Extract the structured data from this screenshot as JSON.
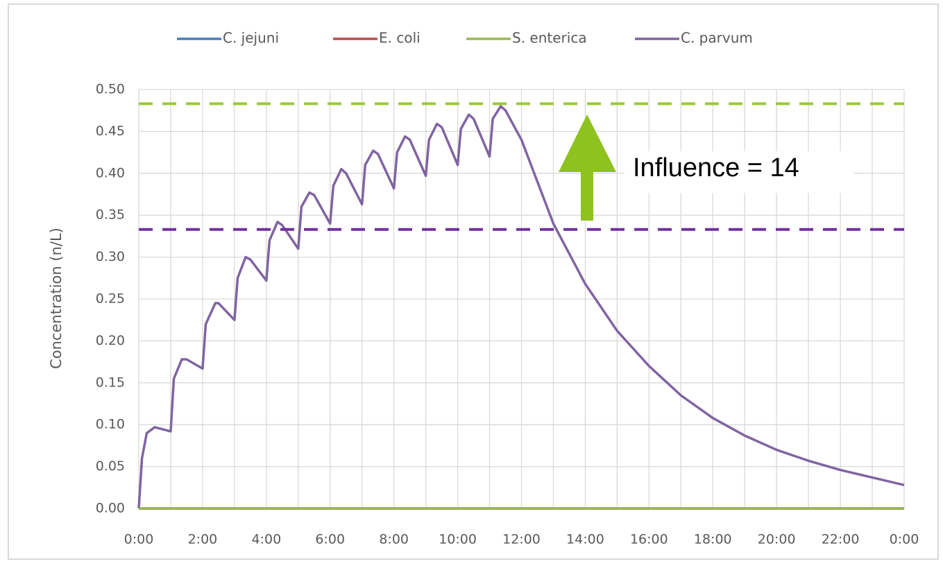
{
  "chart_data": {
    "type": "line",
    "y_label": "Concentration (n/L)",
    "annotation": "Influence = 14",
    "legend": "top",
    "grid": true,
    "xlim": [
      0,
      24
    ],
    "xticks": [
      {
        "value": 0,
        "label": "0:00"
      },
      {
        "value": 2,
        "label": "2:00"
      },
      {
        "value": 4,
        "label": "4:00"
      },
      {
        "value": 6,
        "label": "6:00"
      },
      {
        "value": 8,
        "label": "8:00"
      },
      {
        "value": 10,
        "label": "10:00"
      },
      {
        "value": 12,
        "label": "12:00"
      },
      {
        "value": 14,
        "label": "14:00"
      },
      {
        "value": 16,
        "label": "16:00"
      },
      {
        "value": 18,
        "label": "18:00"
      },
      {
        "value": 20,
        "label": "20:00"
      },
      {
        "value": 22,
        "label": "22:00"
      },
      {
        "value": 24,
        "label": "0:00"
      }
    ],
    "xminor_ticks": [
      1,
      3,
      5,
      7,
      9,
      11,
      13,
      15,
      17,
      19,
      21,
      23
    ],
    "ylim": [
      0,
      0.5
    ],
    "yticks": [
      {
        "value": 0,
        "label": "0.00"
      },
      {
        "value": 0.05,
        "label": "0.05"
      },
      {
        "value": 0.1,
        "label": "0.10"
      },
      {
        "value": 0.15,
        "label": "0.15"
      },
      {
        "value": 0.2,
        "label": "0.20"
      },
      {
        "value": 0.25,
        "label": "0.25"
      },
      {
        "value": 0.3,
        "label": "0.30"
      },
      {
        "value": 0.35,
        "label": "0.35"
      },
      {
        "value": 0.4,
        "label": "0.40"
      },
      {
        "value": 0.45,
        "label": "0.45"
      },
      {
        "value": 0.5,
        "label": "0.50"
      }
    ],
    "reference_lines": [
      {
        "value": 0.483,
        "color": "#9bc83a"
      },
      {
        "value": 0.333,
        "color": "#7030a0"
      }
    ],
    "x": [
      0,
      0.1,
      0.25,
      0.5,
      1,
      1.1,
      1.35,
      1.5,
      2,
      2.1,
      2.4,
      2.5,
      3,
      3.1,
      3.35,
      3.5,
      4,
      4.1,
      4.35,
      4.5,
      5,
      5.1,
      5.35,
      5.5,
      6,
      6.1,
      6.35,
      6.5,
      7,
      7.1,
      7.35,
      7.5,
      8,
      8.1,
      8.35,
      8.5,
      9,
      9.1,
      9.35,
      9.5,
      10,
      10.1,
      10.35,
      10.5,
      11,
      11.1,
      11.35,
      11.5,
      12,
      13,
      14,
      15,
      16,
      17,
      18,
      19,
      20,
      21,
      22,
      23,
      24
    ],
    "series": [
      {
        "name": "C. jejuni",
        "color": "#4a7ebb",
        "values": [
          0,
          0,
          0,
          0,
          0,
          0,
          0,
          0,
          0,
          0,
          0,
          0,
          0,
          0,
          0,
          0,
          0,
          0,
          0,
          0,
          0,
          0,
          0,
          0,
          0,
          0,
          0,
          0,
          0,
          0,
          0,
          0,
          0,
          0,
          0,
          0,
          0,
          0,
          0,
          0,
          0,
          0,
          0,
          0,
          0,
          0,
          0,
          0,
          0,
          0,
          0,
          0,
          0,
          0,
          0,
          0,
          0,
          0,
          0,
          0,
          0
        ]
      },
      {
        "name": "E. coli",
        "color": "#be4b48",
        "values": [
          0,
          0,
          0,
          0,
          0,
          0,
          0,
          0,
          0,
          0,
          0,
          0,
          0,
          0,
          0,
          0,
          0,
          0,
          0,
          0,
          0,
          0,
          0,
          0,
          0,
          0,
          0,
          0,
          0,
          0,
          0,
          0,
          0,
          0,
          0,
          0,
          0,
          0,
          0,
          0,
          0,
          0,
          0,
          0,
          0,
          0,
          0,
          0,
          0,
          0,
          0,
          0,
          0,
          0,
          0,
          0,
          0,
          0,
          0,
          0,
          0
        ]
      },
      {
        "name": "S. enterica",
        "color": "#98b954",
        "values": [
          0,
          0,
          0,
          0,
          0,
          0,
          0,
          0,
          0,
          0,
          0,
          0,
          0,
          0,
          0,
          0,
          0,
          0,
          0,
          0,
          0,
          0,
          0,
          0,
          0,
          0,
          0,
          0,
          0,
          0,
          0,
          0,
          0,
          0,
          0,
          0,
          0,
          0,
          0,
          0,
          0,
          0,
          0,
          0,
          0,
          0,
          0,
          0,
          0,
          0,
          0,
          0,
          0,
          0,
          0,
          0,
          0,
          0,
          0,
          0,
          0
        ]
      },
      {
        "name": "C. parvum",
        "color": "#8064a2",
        "values": [
          0,
          0.06,
          0.09,
          0.097,
          0.092,
          0.155,
          0.178,
          0.178,
          0.167,
          0.22,
          0.245,
          0.245,
          0.225,
          0.275,
          0.3,
          0.297,
          0.272,
          0.32,
          0.342,
          0.338,
          0.31,
          0.36,
          0.377,
          0.374,
          0.34,
          0.385,
          0.405,
          0.4,
          0.363,
          0.41,
          0.427,
          0.423,
          0.382,
          0.425,
          0.444,
          0.44,
          0.397,
          0.44,
          0.459,
          0.455,
          0.41,
          0.453,
          0.47,
          0.465,
          0.42,
          0.465,
          0.48,
          0.475,
          0.44,
          0.34,
          0.268,
          0.212,
          0.17,
          0.135,
          0.108,
          0.087,
          0.07,
          0.057,
          0.046,
          0.037,
          0.028
        ]
      }
    ]
  }
}
